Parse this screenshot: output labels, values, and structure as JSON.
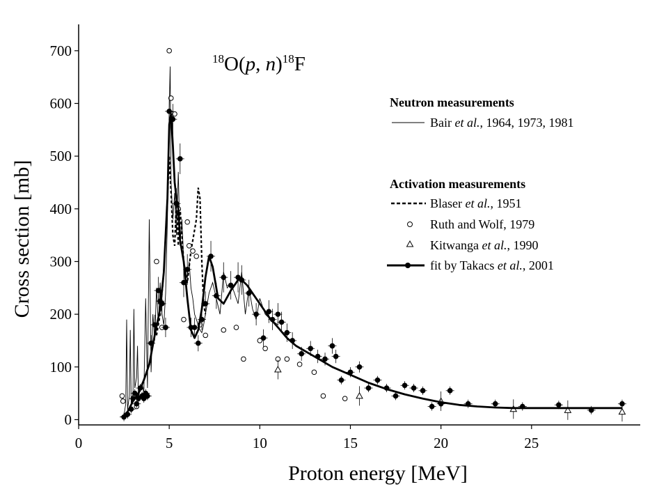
{
  "chart_data": {
    "type": "scatter",
    "reaction": {
      "pre_mass": "18",
      "target": "O",
      "paren_open": "(",
      "proj": "p",
      "comma": ", ",
      "ejectile": "n",
      "paren_close": ")",
      "post_mass": "18",
      "product": "F"
    },
    "xlabel": "Proton energy [MeV]",
    "ylabel": "Cross section [mb]",
    "xlim": [
      0,
      31
    ],
    "ylim": [
      -10,
      750
    ],
    "xticks": [
      0,
      5,
      10,
      15,
      20,
      25
    ],
    "yticks": [
      0,
      100,
      200,
      300,
      400,
      500,
      600,
      700
    ],
    "legend": {
      "group1_title": "Neutron measurements",
      "bair": {
        "name": "Bair",
        "etal": "et al.",
        "rest": ", 1964, 1973, 1981"
      },
      "group2_title": "Activation measurements",
      "blaser": {
        "name": "Blaser",
        "etal": "et al.",
        "rest": ", 1951"
      },
      "ruth": {
        "label": "Ruth and Wolf, 1979"
      },
      "kitwanga": {
        "name": "Kitwanga",
        "etal": "et al.",
        "rest": ", 1990"
      },
      "takacs": {
        "name": "fit by Takacs",
        "etal": "et al.",
        "rest": ", 2001"
      }
    },
    "series": [
      {
        "name": "Bair et al., 1964, 1973, 1981",
        "style": "thin-line",
        "x": [
          2.3,
          2.5,
          2.6,
          2.65,
          2.7,
          2.8,
          2.85,
          2.9,
          3.0,
          3.05,
          3.1,
          3.2,
          3.25,
          3.3,
          3.4,
          3.5,
          3.6,
          3.7,
          3.8,
          3.9,
          4.0,
          4.1,
          4.2,
          4.3,
          4.4,
          4.5,
          4.6,
          4.7,
          4.8,
          4.9,
          5.0,
          5.05,
          5.1,
          5.2,
          5.3,
          5.4,
          5.5,
          5.6,
          5.7,
          5.8,
          5.9,
          6.0,
          6.1,
          6.2,
          6.3,
          6.4,
          6.5,
          6.6,
          6.7,
          6.8,
          6.9,
          7.0,
          7.2,
          7.4,
          7.6,
          7.8,
          8.0,
          8.2,
          8.4,
          8.6,
          8.8,
          9.0,
          9.2,
          9.4,
          9.6,
          9.8,
          10.0,
          10.3,
          10.6,
          11.0
        ],
        "y": [
          5,
          8,
          30,
          190,
          20,
          45,
          170,
          30,
          50,
          210,
          60,
          80,
          140,
          40,
          60,
          70,
          50,
          230,
          60,
          380,
          90,
          200,
          150,
          250,
          180,
          260,
          200,
          180,
          240,
          380,
          590,
          670,
          450,
          380,
          430,
          350,
          470,
          330,
          380,
          300,
          280,
          270,
          300,
          250,
          230,
          200,
          190,
          180,
          170,
          165,
          180,
          200,
          240,
          260,
          230,
          200,
          280,
          250,
          260,
          240,
          220,
          280,
          200,
          250,
          210,
          190,
          230,
          200,
          190,
          180
        ]
      },
      {
        "name": "Blaser et al., 1951",
        "style": "dashed",
        "x": [
          4.3,
          4.5,
          4.7,
          4.9,
          5.0,
          5.1,
          5.2,
          5.3,
          5.4,
          5.5,
          5.6,
          5.8,
          6.0,
          6.2,
          6.4,
          6.5,
          6.6,
          6.7,
          6.8,
          6.9,
          7.0
        ],
        "y": [
          160,
          200,
          280,
          420,
          500,
          430,
          350,
          330,
          420,
          330,
          400,
          300,
          260,
          320,
          360,
          380,
          440,
          420,
          300,
          220,
          200
        ]
      },
      {
        "name": "Ruth and Wolf, 1979",
        "style": "open-circle",
        "x": [
          2.4,
          2.45,
          3.2,
          4.3,
          4.6,
          4.8,
          5.0,
          5.1,
          5.2,
          5.3,
          5.5,
          5.8,
          6.0,
          6.1,
          6.3,
          6.5,
          6.7,
          7.0,
          8.0,
          8.7,
          9.1,
          10.0,
          10.3,
          11.0,
          11.5,
          12.2,
          13.0,
          13.5,
          14.0,
          14.7
        ],
        "y": [
          45,
          35,
          25,
          300,
          175,
          175,
          700,
          610,
          580,
          580,
          400,
          190,
          375,
          330,
          320,
          310,
          180,
          160,
          170,
          175,
          115,
          150,
          135,
          115,
          115,
          105,
          90,
          45,
          140,
          40
        ]
      },
      {
        "name": "Kitwanga et al., 1990",
        "style": "open-triangle",
        "x": [
          11.0,
          15.5,
          20.0,
          24.0,
          27.0,
          30.0
        ],
        "y": [
          95,
          45,
          35,
          20,
          18,
          15
        ]
      },
      {
        "name": "fit by Takacs et al., 2001",
        "style": "thick-line-filled-circle",
        "fit_x": [
          2.4,
          2.7,
          3.0,
          3.3,
          3.6,
          3.9,
          4.2,
          4.5,
          4.7,
          4.9,
          5.0,
          5.1,
          5.2,
          5.3,
          5.4,
          5.5,
          5.6,
          5.8,
          6.0,
          6.2,
          6.4,
          6.6,
          6.8,
          7.0,
          7.2,
          7.4,
          7.7,
          8.0,
          8.4,
          8.8,
          9.0,
          9.3,
          9.6,
          10.0,
          10.5,
          11.0,
          11.5,
          12.0,
          13.0,
          14.0,
          15.0,
          16.0,
          17.0,
          18.0,
          19.0,
          20.0,
          21.0,
          22.0,
          23.0,
          24.0,
          25.0,
          26.0,
          27.0,
          28.0,
          29.0,
          30.0
        ],
        "fit_y": [
          5,
          15,
          35,
          50,
          75,
          105,
          160,
          210,
          280,
          420,
          560,
          580,
          520,
          450,
          420,
          400,
          340,
          300,
          230,
          170,
          155,
          170,
          210,
          270,
          310,
          290,
          230,
          220,
          245,
          265,
          265,
          255,
          240,
          220,
          195,
          175,
          155,
          140,
          120,
          100,
          85,
          70,
          58,
          48,
          40,
          33,
          28,
          25,
          23,
          22,
          22,
          22,
          22,
          22,
          22,
          22
        ],
        "x": [
          2.5,
          2.7,
          2.9,
          3.0,
          3.1,
          3.2,
          3.3,
          3.4,
          3.5,
          3.6,
          3.7,
          3.8,
          4.0,
          4.2,
          4.4,
          4.5,
          4.6,
          4.8,
          5.0,
          5.2,
          5.4,
          5.6,
          5.8,
          6.0,
          6.2,
          6.4,
          6.6,
          6.8,
          7.0,
          7.3,
          7.6,
          8.0,
          8.4,
          8.8,
          9.0,
          9.4,
          9.8,
          10.2,
          10.5,
          10.7,
          11.0,
          11.2,
          11.5,
          11.8,
          12.3,
          12.8,
          13.2,
          13.6,
          14.0,
          14.2,
          14.5,
          15.0,
          15.5,
          16.0,
          16.5,
          17.0,
          17.5,
          18.0,
          18.5,
          19.0,
          19.5,
          20.0,
          20.5,
          21.5,
          23.0,
          24.5,
          26.5,
          28.3,
          30.0
        ],
        "y": [
          5,
          10,
          20,
          40,
          50,
          30,
          40,
          60,
          45,
          40,
          50,
          45,
          145,
          180,
          245,
          225,
          220,
          175,
          585,
          570,
          410,
          495,
          260,
          285,
          175,
          175,
          145,
          190,
          220,
          310,
          235,
          270,
          255,
          270,
          265,
          240,
          200,
          155,
          205,
          190,
          200,
          185,
          165,
          150,
          125,
          135,
          120,
          115,
          140,
          120,
          75,
          90,
          100,
          60,
          75,
          60,
          45,
          65,
          60,
          55,
          25,
          30,
          55,
          30,
          30,
          25,
          28,
          18,
          30
        ]
      }
    ]
  }
}
